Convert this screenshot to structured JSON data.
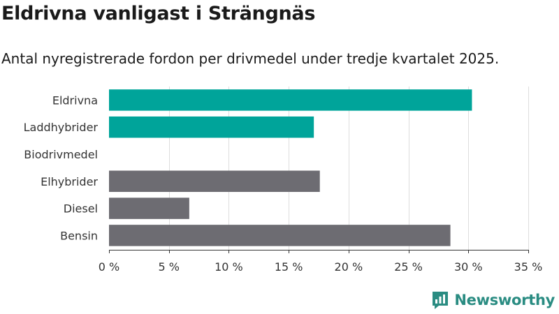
{
  "title": "Eldrivna vanligast i Strängnäs",
  "subtitle": "Antal nyregistrerade fordon per drivmedel under tredje kvartalet 2025.",
  "brand": {
    "name": "Newsworthy",
    "icon": "newsworthy-logo-icon",
    "color": "#2a8c82"
  },
  "colors": {
    "highlight": "#00a49a",
    "default": "#6d6c72",
    "grid": "#dddddd"
  },
  "chart_data": {
    "type": "bar",
    "orientation": "horizontal",
    "categories": [
      "Eldrivna",
      "Laddhybrider",
      "Biodrivmedel",
      "Elhybrider",
      "Diesel",
      "Bensin"
    ],
    "values": [
      30.3,
      17.1,
      0,
      17.6,
      6.7,
      28.5
    ],
    "bar_colors": [
      "#00a49a",
      "#00a49a",
      "#00a49a",
      "#6d6c72",
      "#6d6c72",
      "#6d6c72"
    ],
    "xlim": [
      0,
      35
    ],
    "ticks": [
      0,
      5,
      10,
      15,
      20,
      25,
      30,
      35
    ],
    "tick_labels": [
      "0 %",
      "5 %",
      "10 %",
      "15 %",
      "20 %",
      "25 %",
      "30 %",
      "35 %"
    ],
    "grid": true,
    "xlabel": "",
    "ylabel": ""
  }
}
